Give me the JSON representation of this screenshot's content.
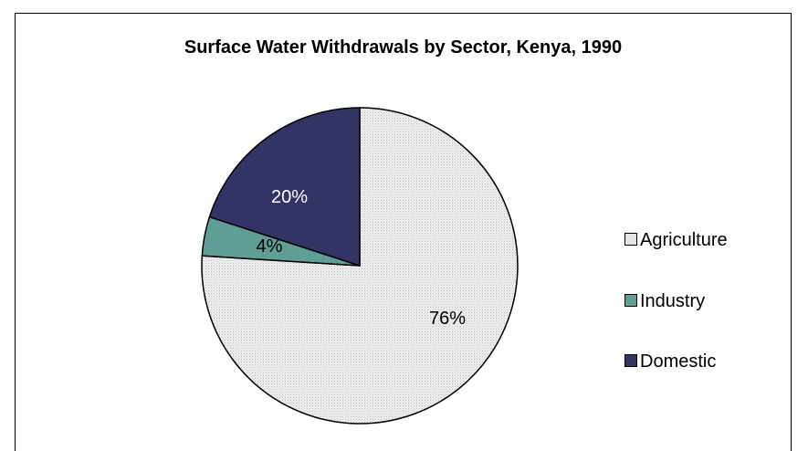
{
  "chart_data": {
    "type": "pie",
    "title": "Surface Water Withdrawals by Sector, Kenya, 1990",
    "slices": [
      {
        "label": "Agriculture",
        "value": 76,
        "display": "76%",
        "color": "#e4e4e4",
        "label_color": "#000000"
      },
      {
        "label": "Industry",
        "value": 4,
        "display": "4%",
        "color": "#5f9e94",
        "label_color": "#000000"
      },
      {
        "label": "Domestic",
        "value": 20,
        "display": "20%",
        "color": "#333366",
        "label_color": "#ffffff"
      }
    ],
    "start": "12 o'clock",
    "direction": "clockwise",
    "legend_position": "right"
  }
}
